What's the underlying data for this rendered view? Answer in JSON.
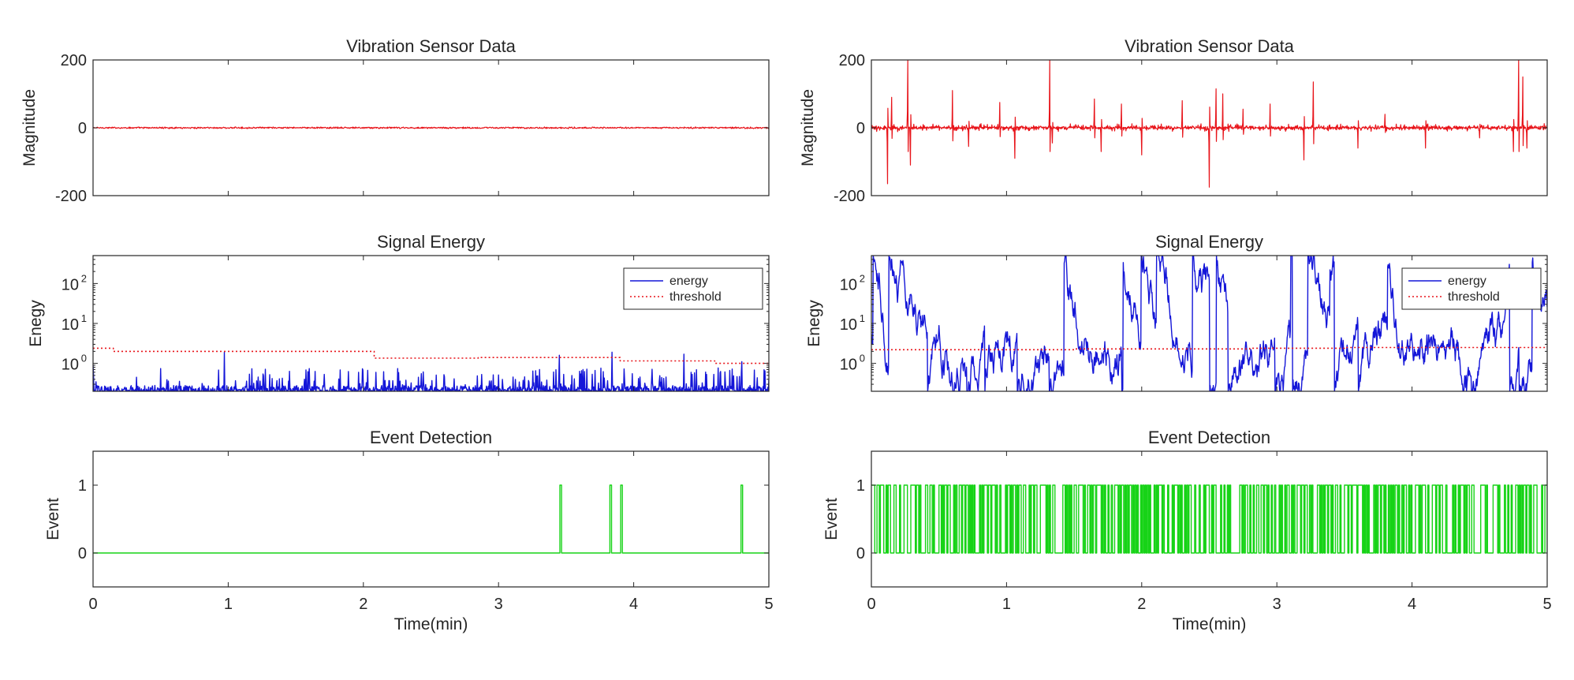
{
  "colors": {
    "vibration": "#e8141a",
    "energy": "#1416d8",
    "threshold": "#e8141a",
    "event": "#17d317",
    "axis": "#262626"
  },
  "chart_data": [
    {
      "id": "left-vibration",
      "type": "line",
      "title": "Vibration Sensor Data",
      "ylabel": "Magnitude",
      "xlabel": "",
      "xlim": [
        0,
        5
      ],
      "ylim": [
        -200,
        200
      ],
      "y_ticks": [
        "200",
        "0",
        "-200"
      ],
      "x_ticks": [],
      "series": [
        {
          "style": "noise",
          "color": "vibration",
          "baseline": 0,
          "amplitude": 2
        }
      ]
    },
    {
      "id": "left-energy",
      "type": "line",
      "title": "Signal Energy",
      "ylabel": "Enegy",
      "xlabel": "",
      "xlim": [
        0,
        5
      ],
      "ylim": [
        0.2,
        500
      ],
      "yscale": "log",
      "y_ticks": [
        {
          "base": "10",
          "exp": "0"
        },
        {
          "base": "10",
          "exp": "1"
        },
        {
          "base": "10",
          "exp": "2"
        }
      ],
      "x_ticks": [],
      "legend": {
        "position": "top-right",
        "entries": [
          "energy",
          "threshold"
        ]
      },
      "series": [
        {
          "name": "energy",
          "style": "energy-quiet",
          "color": "energy",
          "peaks": [
            [
              0.97,
              1.9
            ],
            [
              3.45,
              1.6
            ],
            [
              3.84,
              1.9
            ],
            [
              4.37,
              1.7
            ],
            [
              4.8,
              1.1
            ]
          ]
        },
        {
          "name": "threshold",
          "style": "step",
          "color": "threshold",
          "steps": [
            [
              0,
              2.4
            ],
            [
              0.15,
              2.0
            ],
            [
              2.08,
              1.35
            ],
            [
              2.85,
              1.4
            ],
            [
              3.9,
              1.15
            ],
            [
              4.6,
              1.0
            ],
            [
              5,
              0.9
            ]
          ]
        }
      ]
    },
    {
      "id": "left-event",
      "type": "line",
      "title": "Event Detection",
      "ylabel": "Event",
      "xlabel": "Time(min)",
      "xlim": [
        0,
        5
      ],
      "ylim": [
        -0.5,
        1.5
      ],
      "y_ticks": [
        "1",
        "0"
      ],
      "x_ticks": [
        "0",
        "1",
        "2",
        "3",
        "4",
        "5"
      ],
      "series": [
        {
          "style": "events",
          "color": "event",
          "events": [
            3.46,
            3.83,
            3.91,
            4.8
          ]
        }
      ]
    },
    {
      "id": "right-vibration",
      "type": "line",
      "title": "Vibration Sensor Data",
      "ylabel": "Magnitude",
      "xlabel": "",
      "xlim": [
        0,
        5
      ],
      "ylim": [
        -200,
        200
      ],
      "y_ticks": [
        "200",
        "0",
        "-200"
      ],
      "x_ticks": [],
      "series": [
        {
          "style": "noise-spikes",
          "color": "vibration",
          "baseline": 0,
          "amplitude": 8,
          "spikes": [
            [
              0.12,
              -165
            ],
            [
              0.15,
              90
            ],
            [
              0.27,
              200
            ],
            [
              0.29,
              110
            ],
            [
              0.29,
              -110
            ],
            [
              0.6,
              110
            ],
            [
              0.72,
              -55
            ],
            [
              0.95,
              75
            ],
            [
              1.06,
              -90
            ],
            [
              1.32,
              200
            ],
            [
              1.34,
              -45
            ],
            [
              1.65,
              85
            ],
            [
              1.7,
              -70
            ],
            [
              1.85,
              70
            ],
            [
              2.0,
              -80
            ],
            [
              2.3,
              80
            ],
            [
              2.5,
              -175
            ],
            [
              2.55,
              115
            ],
            [
              2.6,
              100
            ],
            [
              2.75,
              55
            ],
            [
              2.95,
              70
            ],
            [
              3.2,
              -95
            ],
            [
              3.27,
              135
            ],
            [
              3.6,
              -60
            ],
            [
              3.8,
              40
            ],
            [
              4.1,
              -60
            ],
            [
              4.5,
              -30
            ],
            [
              4.75,
              -70
            ],
            [
              4.79,
              200
            ],
            [
              4.82,
              150
            ],
            [
              4.85,
              -60
            ]
          ]
        }
      ]
    },
    {
      "id": "right-energy",
      "type": "line",
      "title": "Signal Energy",
      "ylabel": "Enegy",
      "xlabel": "",
      "xlim": [
        0,
        5
      ],
      "ylim": [
        0.2,
        500
      ],
      "yscale": "log",
      "y_ticks": [
        {
          "base": "10",
          "exp": "0"
        },
        {
          "base": "10",
          "exp": "1"
        },
        {
          "base": "10",
          "exp": "2"
        }
      ],
      "x_ticks": [],
      "legend": {
        "position": "top-right",
        "entries": [
          "energy",
          "threshold"
        ]
      },
      "series": [
        {
          "name": "energy",
          "style": "energy-busy",
          "color": "energy"
        },
        {
          "name": "threshold",
          "style": "step",
          "color": "threshold",
          "steps": [
            [
              0,
              2.2
            ],
            [
              1.5,
              2.3
            ],
            [
              2.8,
              2.4
            ],
            [
              3.5,
              2.5
            ],
            [
              5,
              2.6
            ]
          ]
        }
      ]
    },
    {
      "id": "right-event",
      "type": "line",
      "title": "Event Detection",
      "ylabel": "Event",
      "xlabel": "Time(min)",
      "xlim": [
        0,
        5
      ],
      "ylim": [
        -0.5,
        1.5
      ],
      "y_ticks": [
        "1",
        "0"
      ],
      "x_ticks": [
        "0",
        "1",
        "2",
        "3",
        "4",
        "5"
      ],
      "series": [
        {
          "style": "event-dense",
          "color": "event"
        }
      ]
    }
  ]
}
